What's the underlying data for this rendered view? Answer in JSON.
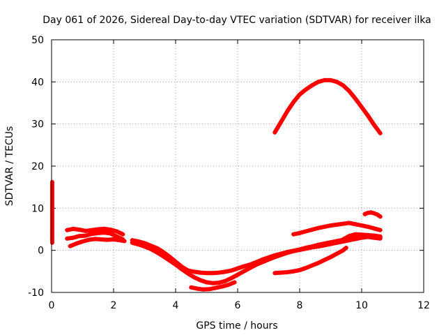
{
  "chart_data": {
    "type": "scatter",
    "title": "Day 061 of 2026, Sidereal Day-to-day VTEC variation (SDTVAR) for receiver ilka",
    "xlabel": "GPS time / hours",
    "ylabel": "SDTVAR / TECUs",
    "xlim": [
      0,
      12
    ],
    "ylim": [
      -10,
      50
    ],
    "xticks": [
      "0",
      "2",
      "4",
      "6",
      "8",
      "10",
      "12"
    ],
    "yticks": [
      "-10",
      "0",
      "10",
      "20",
      "30",
      "40",
      "50"
    ],
    "grid": true,
    "marker": "+",
    "color": "#ff0000",
    "series": [
      {
        "name": "isolated points",
        "points": [
          [
            0.02,
            16.2
          ],
          [
            0.02,
            4.1
          ],
          [
            0.02,
            2.6
          ],
          [
            0.02,
            1.8
          ]
        ]
      },
      {
        "name": "high arc",
        "points": [
          [
            7.2,
            28.0
          ],
          [
            7.4,
            30.5
          ],
          [
            7.6,
            33.0
          ],
          [
            7.8,
            35.2
          ],
          [
            8.0,
            37.0
          ],
          [
            8.2,
            38.2
          ],
          [
            8.4,
            39.2
          ],
          [
            8.6,
            40.0
          ],
          [
            8.8,
            40.4
          ],
          [
            9.0,
            40.4
          ],
          [
            9.2,
            40.0
          ],
          [
            9.4,
            39.2
          ],
          [
            9.6,
            37.8
          ],
          [
            9.8,
            36.0
          ],
          [
            10.0,
            34.0
          ],
          [
            10.2,
            32.0
          ],
          [
            10.4,
            29.8
          ],
          [
            10.6,
            27.8
          ]
        ]
      },
      {
        "name": "upper morning band",
        "points": [
          [
            0.5,
            4.8
          ],
          [
            0.7,
            5.1
          ],
          [
            0.9,
            4.9
          ],
          [
            1.1,
            4.6
          ],
          [
            1.3,
            4.8
          ],
          [
            1.5,
            5.0
          ],
          [
            1.7,
            5.1
          ],
          [
            1.9,
            4.9
          ],
          [
            2.1,
            4.5
          ],
          [
            2.3,
            3.8
          ]
        ]
      },
      {
        "name": "middle morning band",
        "points": [
          [
            0.5,
            2.8
          ],
          [
            0.7,
            3.0
          ],
          [
            0.9,
            3.4
          ],
          [
            1.1,
            3.5
          ],
          [
            1.3,
            3.9
          ],
          [
            1.5,
            4.1
          ],
          [
            1.7,
            4.2
          ],
          [
            1.9,
            4.0
          ],
          [
            2.1,
            3.3
          ],
          [
            2.3,
            2.6
          ]
        ]
      },
      {
        "name": "lower morning band",
        "points": [
          [
            0.6,
            1.0
          ],
          [
            0.8,
            1.6
          ],
          [
            1.0,
            2.1
          ],
          [
            1.2,
            2.5
          ],
          [
            1.4,
            2.7
          ],
          [
            1.6,
            2.6
          ],
          [
            1.8,
            2.5
          ],
          [
            2.0,
            2.6
          ],
          [
            2.2,
            2.4
          ],
          [
            2.35,
            2.2
          ]
        ]
      },
      {
        "name": "dip upper",
        "points": [
          [
            2.6,
            2.4
          ],
          [
            2.8,
            2.1
          ],
          [
            3.0,
            1.7
          ],
          [
            3.2,
            1.1
          ],
          [
            3.4,
            0.5
          ],
          [
            3.6,
            -0.4
          ],
          [
            3.8,
            -1.5
          ],
          [
            4.0,
            -2.7
          ],
          [
            4.2,
            -3.9
          ],
          [
            4.4,
            -4.8
          ],
          [
            4.6,
            -5.1
          ],
          [
            4.8,
            -5.3
          ],
          [
            5.0,
            -5.4
          ],
          [
            5.2,
            -5.4
          ],
          [
            5.4,
            -5.3
          ],
          [
            5.6,
            -5.1
          ],
          [
            5.8,
            -4.8
          ],
          [
            6.0,
            -4.3
          ],
          [
            6.2,
            -3.8
          ],
          [
            6.4,
            -3.4
          ],
          [
            6.6,
            -2.8
          ],
          [
            6.8,
            -2.2
          ],
          [
            7.0,
            -1.7
          ],
          [
            7.2,
            -1.2
          ],
          [
            7.4,
            -0.8
          ],
          [
            7.6,
            -0.4
          ],
          [
            7.8,
            -0.1
          ],
          [
            8.0,
            0.2
          ],
          [
            8.2,
            0.6
          ],
          [
            8.4,
            0.9
          ],
          [
            8.6,
            1.3
          ],
          [
            8.8,
            1.6
          ],
          [
            9.0,
            1.9
          ],
          [
            9.2,
            2.2
          ],
          [
            9.4,
            2.5
          ],
          [
            9.6,
            2.8
          ],
          [
            9.8,
            3.0
          ],
          [
            10.0,
            3.1
          ],
          [
            10.2,
            3.2
          ],
          [
            10.4,
            3.1
          ],
          [
            10.6,
            3.0
          ]
        ]
      },
      {
        "name": "dip middle",
        "points": [
          [
            2.6,
            1.8
          ],
          [
            2.8,
            1.4
          ],
          [
            3.0,
            0.9
          ],
          [
            3.2,
            0.3
          ],
          [
            3.4,
            -0.5
          ],
          [
            3.6,
            -1.4
          ],
          [
            3.8,
            -2.4
          ],
          [
            4.0,
            -3.4
          ],
          [
            4.2,
            -4.5
          ],
          [
            4.4,
            -5.5
          ],
          [
            4.6,
            -6.4
          ],
          [
            4.8,
            -7.1
          ],
          [
            5.0,
            -7.6
          ],
          [
            5.2,
            -7.8
          ],
          [
            5.4,
            -7.7
          ],
          [
            5.6,
            -7.3
          ],
          [
            5.8,
            -6.6
          ],
          [
            6.0,
            -5.8
          ],
          [
            6.2,
            -5.0
          ],
          [
            6.4,
            -4.2
          ],
          [
            6.6,
            -3.4
          ],
          [
            6.8,
            -2.8
          ],
          [
            7.0,
            -2.2
          ],
          [
            7.2,
            -1.6
          ],
          [
            7.4,
            -1.1
          ],
          [
            7.6,
            -0.6
          ],
          [
            7.8,
            -0.2
          ],
          [
            8.0,
            0.1
          ],
          [
            8.2,
            0.4
          ],
          [
            8.4,
            0.7
          ],
          [
            8.6,
            0.9
          ],
          [
            8.8,
            1.2
          ],
          [
            9.0,
            1.5
          ],
          [
            9.2,
            1.8
          ],
          [
            9.4,
            2.1
          ],
          [
            9.6,
            2.4
          ],
          [
            9.8,
            2.7
          ],
          [
            10.0,
            3.0
          ],
          [
            10.2,
            3.2
          ],
          [
            10.4,
            3.0
          ],
          [
            10.6,
            2.8
          ]
        ]
      },
      {
        "name": "dip lower",
        "points": [
          [
            4.5,
            -8.8
          ],
          [
            4.7,
            -9.1
          ],
          [
            4.9,
            -9.3
          ],
          [
            5.1,
            -9.2
          ],
          [
            5.3,
            -8.9
          ],
          [
            5.5,
            -8.6
          ],
          [
            5.7,
            -8.2
          ],
          [
            5.9,
            -7.6
          ]
        ]
      },
      {
        "name": "afternoon high band",
        "points": [
          [
            7.8,
            3.8
          ],
          [
            8.0,
            4.1
          ],
          [
            8.2,
            4.5
          ],
          [
            8.4,
            4.9
          ],
          [
            8.6,
            5.3
          ],
          [
            8.8,
            5.6
          ],
          [
            9.0,
            5.9
          ],
          [
            9.2,
            6.1
          ],
          [
            9.4,
            6.3
          ],
          [
            9.6,
            6.5
          ],
          [
            9.8,
            6.2
          ],
          [
            10.0,
            5.9
          ],
          [
            10.2,
            5.6
          ],
          [
            10.4,
            5.2
          ],
          [
            10.6,
            4.8
          ]
        ]
      },
      {
        "name": "afternoon low band",
        "points": [
          [
            7.2,
            -5.4
          ],
          [
            7.4,
            -5.3
          ],
          [
            7.6,
            -5.2
          ],
          [
            7.8,
            -5.0
          ],
          [
            8.0,
            -4.7
          ],
          [
            8.2,
            -4.2
          ],
          [
            8.4,
            -3.6
          ],
          [
            8.6,
            -3.0
          ],
          [
            8.8,
            -2.3
          ],
          [
            9.0,
            -1.6
          ],
          [
            9.2,
            -0.8
          ],
          [
            9.4,
            0.0
          ],
          [
            9.5,
            0.6
          ]
        ]
      },
      {
        "name": "late cluster",
        "points": [
          [
            9.4,
            2.6
          ],
          [
            9.6,
            3.4
          ],
          [
            9.8,
            3.8
          ],
          [
            10.0,
            3.7
          ],
          [
            10.2,
            3.6
          ],
          [
            10.4,
            3.5
          ],
          [
            10.6,
            3.3
          ]
        ]
      },
      {
        "name": "late short arc",
        "points": [
          [
            10.1,
            8.6
          ],
          [
            10.2,
            8.9
          ],
          [
            10.3,
            9.0
          ],
          [
            10.4,
            8.8
          ],
          [
            10.5,
            8.5
          ],
          [
            10.6,
            8.0
          ]
        ]
      }
    ]
  }
}
